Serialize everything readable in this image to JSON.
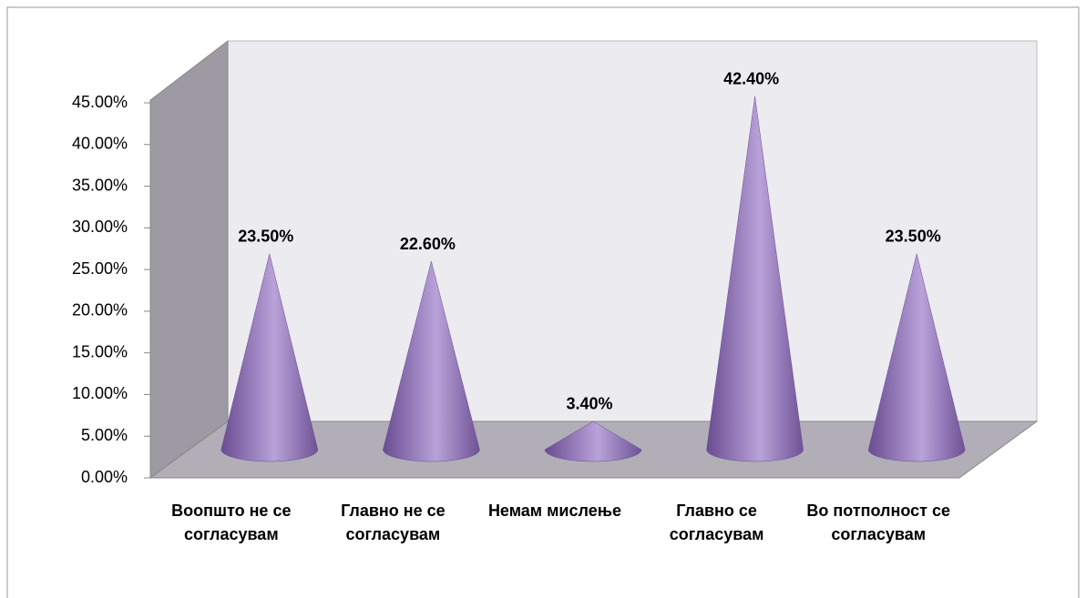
{
  "chart_data": {
    "type": "cone",
    "categories": [
      "Воопшто не се согласувам",
      "Главно не се согласувам",
      "Немам мислење",
      "Главно се согласувам",
      "Во потполност се согласувам"
    ],
    "values": [
      23.5,
      22.6,
      3.4,
      42.4,
      23.5
    ],
    "value_labels": [
      "23.50%",
      "22.60%",
      "3.40%",
      "42.40%",
      "23.50%"
    ],
    "color": "#8a6cb0",
    "ylim": [
      0,
      45
    ],
    "yticks": [
      {
        "value": 0,
        "label": "0.00%"
      },
      {
        "value": 5,
        "label": "5.00%"
      },
      {
        "value": 10,
        "label": "10.00%"
      },
      {
        "value": 15,
        "label": "15.00%"
      },
      {
        "value": 20,
        "label": "20.00%"
      },
      {
        "value": 25,
        "label": "25.00%"
      },
      {
        "value": 30,
        "label": "30.00%"
      },
      {
        "value": 35,
        "label": "35.00%"
      },
      {
        "value": 40,
        "label": "40.00%"
      },
      {
        "value": 45,
        "label": "45.00%"
      }
    ]
  }
}
